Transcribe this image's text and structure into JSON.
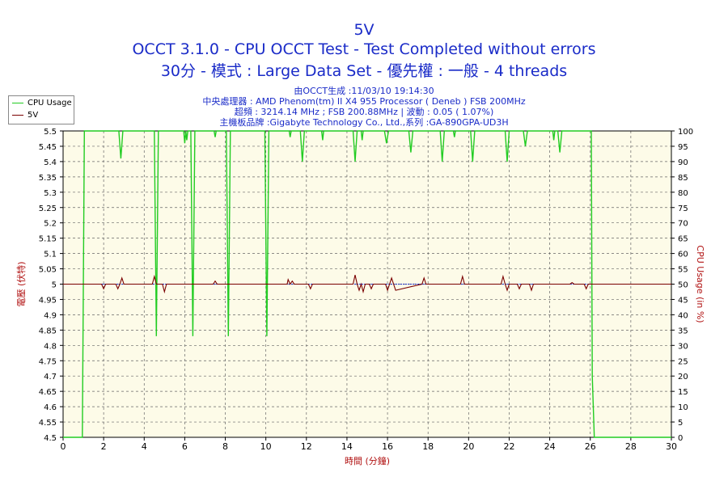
{
  "header": {
    "line1": "5V",
    "line2": "OCCT 3.1.0 - CPU OCCT Test - Test Completed without errors",
    "line3": "30分 - 模式 : Large Data Set - 優先權 : 一般 - 4 threads"
  },
  "info": {
    "generated": "由OCCT生成 :11/03/10 19:14:30",
    "cpu": "中央處理器 : AMD Phenom(tm) II X4 955 Processor ( Deneb ) FSB 200MHz",
    "clock": "超頻 : 3214.14 MHz ; FSB 200.88MHz | 波動 : 0.05 ( 1.07%)",
    "board": "主機板品牌 :Gigabyte Technology Co., Ltd.,系列 :GA-890GPA-UD3H"
  },
  "colors": {
    "cpu_usage": "#22cc22",
    "voltage": "#7a0000",
    "baseline": "#1a2bc8",
    "plot_bg": "#fdfbe8",
    "title": "#1a2bc8",
    "axis_label": "#b01010"
  },
  "chart_data": {
    "type": "line",
    "xlabel": "時間 (分鐘)",
    "ylabel_left": "電壓 (伏特)",
    "ylabel_right": "CPU Usage (in %)",
    "xlim": [
      0,
      30
    ],
    "ylim_left": [
      4.5,
      5.5
    ],
    "ylim_right": [
      0,
      100
    ],
    "x_ticks": [
      0,
      2,
      4,
      6,
      8,
      10,
      12,
      14,
      16,
      18,
      20,
      22,
      24,
      26,
      28,
      30
    ],
    "y_left_ticks": [
      4.5,
      4.55,
      4.6,
      4.65,
      4.7,
      4.75,
      4.8,
      4.85,
      4.9,
      4.95,
      5,
      5.05,
      5.1,
      5.15,
      5.2,
      5.25,
      5.3,
      5.35,
      5.4,
      5.45,
      5.5
    ],
    "y_right_ticks": [
      0,
      5,
      10,
      15,
      20,
      25,
      30,
      35,
      40,
      45,
      50,
      55,
      60,
      65,
      70,
      75,
      80,
      85,
      90,
      95,
      100
    ],
    "grid": true,
    "legend_position": "top-left",
    "series": [
      {
        "name": "CPU Usage",
        "axis": "right",
        "x": [
          0,
          0.95,
          1.05,
          1.15,
          2.75,
          2.85,
          2.95,
          4.5,
          4.6,
          4.7,
          5.95,
          6.0,
          6.05,
          6.1,
          6.15,
          6.3,
          6.4,
          6.5,
          7.45,
          7.5,
          7.55,
          8.05,
          8.15,
          8.25,
          9.95,
          10.05,
          10.15,
          11.15,
          11.2,
          11.25,
          11.7,
          11.8,
          11.9,
          12.75,
          12.8,
          12.85,
          14.3,
          14.4,
          14.5,
          14.7,
          14.75,
          14.8,
          15.85,
          15.95,
          16.05,
          17.05,
          17.15,
          17.25,
          18.6,
          18.7,
          18.8,
          19.25,
          19.3,
          19.35,
          20.1,
          20.2,
          20.3,
          21.8,
          21.9,
          22.0,
          22.7,
          22.8,
          22.9,
          24.15,
          24.2,
          24.25,
          24.4,
          24.5,
          24.6,
          25.95,
          26.0,
          26.05,
          26.1,
          26.2,
          30
        ],
        "values": [
          0,
          0,
          100,
          100,
          100,
          91,
          100,
          100,
          33,
          100,
          100,
          96,
          100,
          97,
          100,
          100,
          33,
          100,
          100,
          98,
          100,
          100,
          33,
          100,
          100,
          33,
          100,
          100,
          98,
          100,
          100,
          90,
          100,
          100,
          97,
          100,
          100,
          90,
          100,
          100,
          97,
          100,
          100,
          96,
          100,
          100,
          93,
          100,
          100,
          90,
          100,
          100,
          98,
          100,
          100,
          90,
          100,
          100,
          90,
          100,
          100,
          95,
          100,
          100,
          97,
          100,
          100,
          93,
          100,
          100,
          100,
          100,
          20,
          0,
          0
        ]
      },
      {
        "name": "5V",
        "axis": "left",
        "x": [
          0,
          1.9,
          2.0,
          2.1,
          2.6,
          2.7,
          2.8,
          2.9,
          3.0,
          4.4,
          4.5,
          4.6,
          4.9,
          5.0,
          5.1,
          7.4,
          7.5,
          7.6,
          11.05,
          11.1,
          11.2,
          11.3,
          11.4,
          12.1,
          12.2,
          12.3,
          14.3,
          14.4,
          14.5,
          14.6,
          14.7,
          14.8,
          14.9,
          15.1,
          15.2,
          15.3,
          15.9,
          16.0,
          16.1,
          16.2,
          16.3,
          16.4,
          17.7,
          17.8,
          17.9,
          19.6,
          19.7,
          19.8,
          21.6,
          21.7,
          21.8,
          21.9,
          22.0,
          22.4,
          22.5,
          22.6,
          23.0,
          23.1,
          23.2,
          25.0,
          25.1,
          25.2,
          25.7,
          25.8,
          25.9,
          30
        ],
        "values": [
          5.0,
          5.0,
          4.985,
          5.0,
          5.0,
          4.985,
          5.0,
          5.02,
          5.0,
          5.0,
          5.025,
          5.0,
          5.0,
          4.975,
          5.0,
          5.0,
          5.01,
          5.0,
          5.0,
          5.015,
          5.0,
          5.01,
          5.0,
          5.0,
          4.985,
          5.0,
          5.0,
          5.03,
          5.0,
          4.98,
          5.0,
          4.975,
          5.0,
          5.0,
          4.985,
          5.0,
          5.0,
          4.98,
          5.0,
          5.02,
          5.0,
          4.98,
          5.0,
          5.02,
          5.0,
          5.0,
          5.025,
          5.0,
          5.0,
          5.025,
          5.0,
          4.98,
          5.0,
          5.0,
          4.985,
          5.0,
          5.0,
          4.98,
          5.0,
          5.0,
          5.005,
          5.0,
          5.0,
          4.985,
          5.0,
          5.0
        ]
      }
    ]
  }
}
